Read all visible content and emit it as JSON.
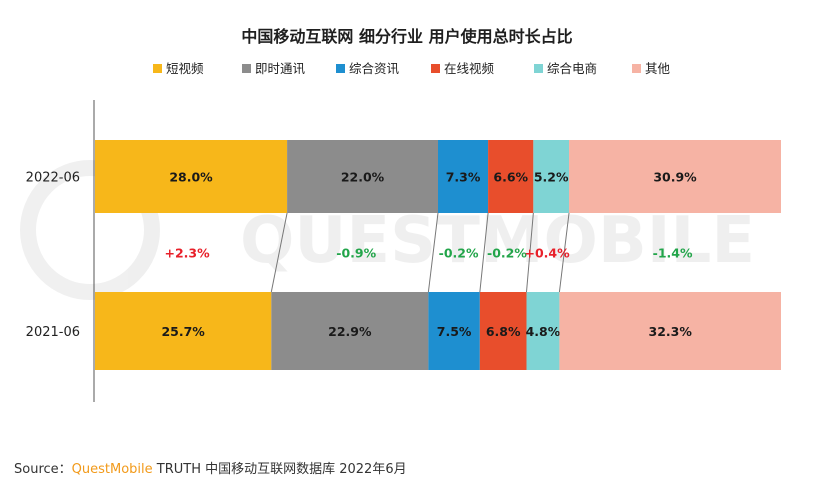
{
  "chart_data": {
    "type": "bar",
    "stacked": true,
    "orientation": "horizontal",
    "percent": true,
    "title": "中国移动互联网 细分行业 用户使用总时长占比",
    "legend_position": "top",
    "categories": [
      "2022-06",
      "2021-06"
    ],
    "series": [
      {
        "name": "短视频",
        "color": "#f7b71a",
        "values": [
          28.0,
          25.7
        ],
        "labels": [
          "28.0%",
          "25.7%"
        ],
        "change": "+2.3%"
      },
      {
        "name": "即时通讯",
        "color": "#8c8c8c",
        "values": [
          22.0,
          22.9
        ],
        "labels": [
          "22.0%",
          "22.9%"
        ],
        "change": "-0.9%"
      },
      {
        "name": "综合资讯",
        "color": "#1e8fd0",
        "values": [
          7.3,
          7.5
        ],
        "labels": [
          "7.3%",
          "7.5%"
        ],
        "change": "-0.2%"
      },
      {
        "name": "在线视频",
        "color": "#e84e2c",
        "values": [
          6.6,
          6.8
        ],
        "labels": [
          "6.6%",
          "6.8%"
        ],
        "change": "-0.2%"
      },
      {
        "name": "综合电商",
        "color": "#7fd4d4",
        "values": [
          5.2,
          4.8
        ],
        "labels": [
          "5.2%",
          "4.8%"
        ],
        "change": "+0.4%"
      },
      {
        "name": "其他",
        "color": "#f6b3a4",
        "values": [
          30.9,
          32.3
        ],
        "labels": [
          "30.9%",
          "32.3%"
        ],
        "change": "-1.4%"
      }
    ],
    "change_colors": {
      "positive": "#e8202a",
      "negative": "#22a54a"
    }
  },
  "source": {
    "prefix": "Source：",
    "brand": "QuestMobile",
    "suffix": " TRUTH 中国移动互联网数据库 2022年6月"
  },
  "watermark": "QUESTMOBILE"
}
